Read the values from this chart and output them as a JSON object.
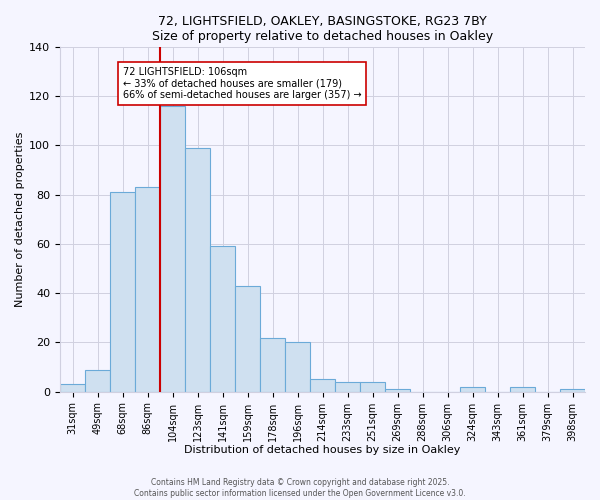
{
  "title1": "72, LIGHTSFIELD, OAKLEY, BASINGSTOKE, RG23 7BY",
  "title2": "Size of property relative to detached houses in Oakley",
  "xlabel": "Distribution of detached houses by size in Oakley",
  "ylabel": "Number of detached properties",
  "bar_labels": [
    "31sqm",
    "49sqm",
    "68sqm",
    "86sqm",
    "104sqm",
    "123sqm",
    "141sqm",
    "159sqm",
    "178sqm",
    "196sqm",
    "214sqm",
    "233sqm",
    "251sqm",
    "269sqm",
    "288sqm",
    "306sqm",
    "324sqm",
    "343sqm",
    "361sqm",
    "379sqm",
    "398sqm"
  ],
  "bar_values": [
    3,
    9,
    81,
    83,
    116,
    99,
    59,
    43,
    22,
    20,
    5,
    4,
    4,
    1,
    0,
    0,
    2,
    0,
    2,
    0,
    1
  ],
  "bar_color": "#cfe0f0",
  "bar_edge_color": "#6baad8",
  "vline_x_index": 4,
  "vline_color": "#cc0000",
  "annotation_text": "72 LIGHTSFIELD: 106sqm\n← 33% of detached houses are smaller (179)\n66% of semi-detached houses are larger (357) →",
  "annotation_box_color": "#ffffff",
  "annotation_box_edge": "#cc0000",
  "ylim": [
    0,
    140
  ],
  "yticks": [
    0,
    20,
    40,
    60,
    80,
    100,
    120,
    140
  ],
  "footer1": "Contains HM Land Registry data © Crown copyright and database right 2025.",
  "footer2": "Contains public sector information licensed under the Open Government Licence v3.0.",
  "bg_color": "#f5f5ff",
  "grid_color": "#d0d0e0"
}
